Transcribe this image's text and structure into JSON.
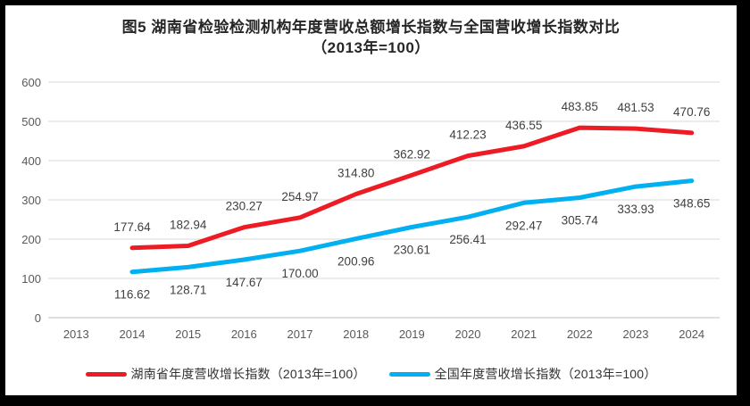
{
  "page": {
    "frame_color": "#000000",
    "background_color": "#ffffff"
  },
  "chart_data": {
    "type": "line",
    "title_lines": [
      "图5 湖南省检验检测机构年度营收总额增长指数与全国营收增长指数对比",
      "（2013年=100）"
    ],
    "categories": [
      "2013",
      "2014",
      "2015",
      "2016",
      "2017",
      "2018",
      "2019",
      "2020",
      "2021",
      "2022",
      "2023",
      "2024"
    ],
    "series": [
      {
        "name": "湖南省年度营收增长指数（2013年=100）",
        "color": "#ed1c24",
        "label_position": "above",
        "values": [
          null,
          177.64,
          182.94,
          230.27,
          254.97,
          314.8,
          362.92,
          412.23,
          436.55,
          483.85,
          481.53,
          470.76
        ],
        "labels": [
          "",
          "177.64",
          "182.94",
          "230.27",
          "254.97",
          "314.80",
          "362.92",
          "412.23",
          "436.55",
          "483.85",
          "481.53",
          "470.76"
        ]
      },
      {
        "name": "全国年度营收增长指数（2013年=100）",
        "color": "#00b0f0",
        "label_position": "below",
        "values": [
          null,
          116.62,
          128.71,
          147.67,
          170.0,
          200.96,
          230.61,
          256.41,
          292.47,
          305.74,
          333.93,
          348.65
        ],
        "labels": [
          "",
          "116.62",
          "128.71",
          "147.67",
          "170.00",
          "200.96",
          "230.61",
          "256.41",
          "292.47",
          "305.74",
          "333.93",
          "348.65"
        ]
      }
    ],
    "ylim": [
      0,
      600
    ],
    "ytick_step": 100,
    "ytick_labels": [
      "0",
      "100",
      "200",
      "300",
      "400",
      "500",
      "600"
    ],
    "grid": "horizontal",
    "legend_position": "bottom",
    "gridline_color": "#d9d9d9",
    "axis_line_color": "#bfbfbf",
    "tick_label_color": "#595959",
    "data_label_color": "#3f3f3f",
    "line_width": 5
  }
}
